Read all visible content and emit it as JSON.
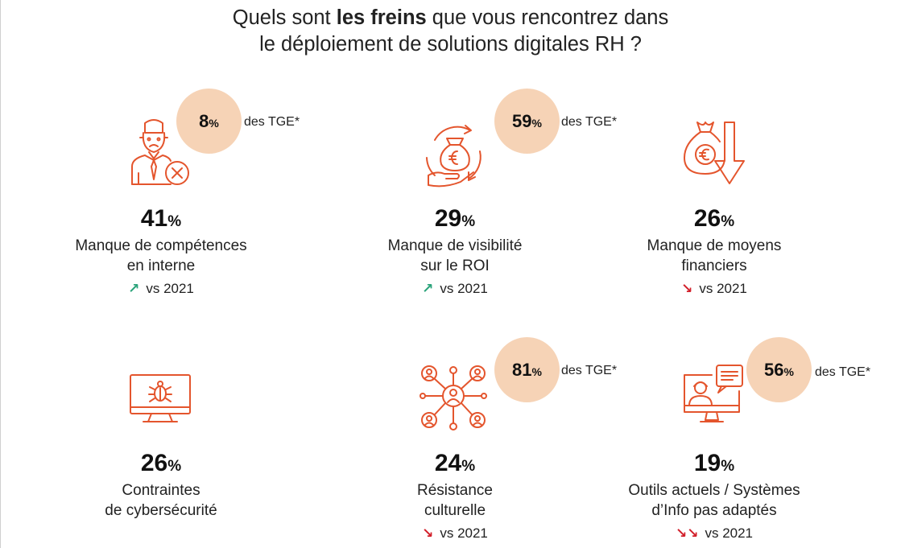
{
  "title": {
    "line1_pre": "Quels sont ",
    "line1_bold": "les freins",
    "line1_post": " que vous rencontrez dans",
    "line2": "le déploiement de solutions digitales RH ?"
  },
  "colors": {
    "icon": "#e4552d",
    "bubble": "#f6d3b6",
    "trend_up": "#2aa37a",
    "trend_down": "#d21f2a"
  },
  "items": [
    {
      "value": "41",
      "unit": "%",
      "label1": "Manque de compétences",
      "label2": "en interne",
      "trend_arrow": "↗",
      "trend_text": "vs 2021",
      "tge_value": "8",
      "tge_unit": "%",
      "tge_label": "des TGE*",
      "icon": "person-cross-icon"
    },
    {
      "value": "29",
      "unit": "%",
      "label1": "Manque de visibilité",
      "label2": "sur le ROI",
      "trend_arrow": "↗",
      "trend_text": "vs 2021",
      "tge_value": "59",
      "tge_unit": "%",
      "tge_label": "des TGE*",
      "icon": "money-cycle-icon"
    },
    {
      "value": "26",
      "unit": "%",
      "label1": "Manque de moyens",
      "label2": "financiers",
      "trend_arrow": "↘",
      "trend_text": "vs 2021",
      "icon": "money-bag-down-icon"
    },
    {
      "value": "26",
      "unit": "%",
      "label1": "Contraintes",
      "label2": "de cybersécurité",
      "icon": "monitor-bug-icon"
    },
    {
      "value": "24",
      "unit": "%",
      "label1": "Résistance",
      "label2": "culturelle",
      "trend_arrow": "↘",
      "trend_text": "vs 2021",
      "tge_value": "81",
      "tge_unit": "%",
      "tge_label": "des TGE*",
      "icon": "network-people-icon"
    },
    {
      "value": "19",
      "unit": "%",
      "label1": "Outils actuels / Systèmes",
      "label2": "d’Info pas adaptés",
      "trend_arrow": "↘↘",
      "trend_text": "vs 2021",
      "tge_value": "56",
      "tge_unit": "%",
      "tge_label": "des TGE*",
      "icon": "user-screen-chat-icon"
    }
  ]
}
